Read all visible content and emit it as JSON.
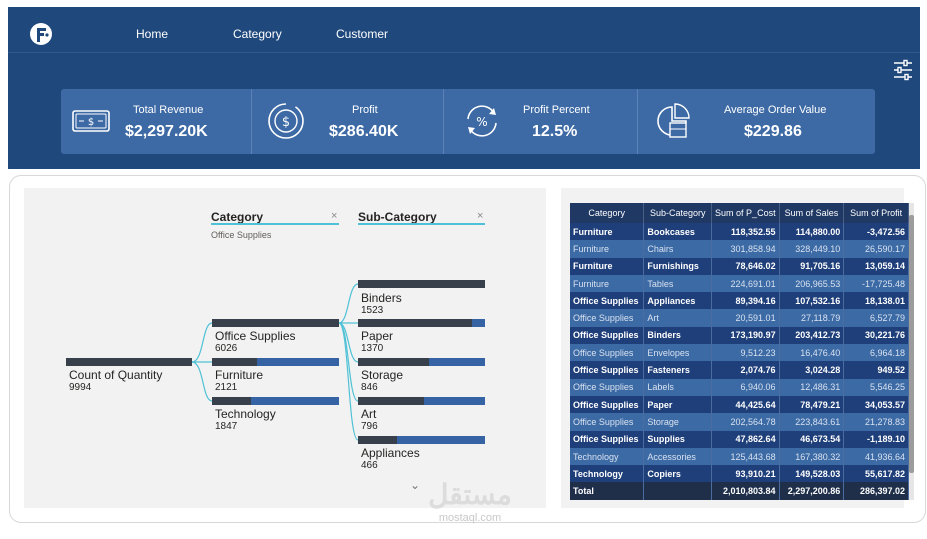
{
  "nav": {
    "items": [
      "Home",
      "Category",
      "Customer"
    ]
  },
  "kpis": [
    {
      "label": "Total Revenue",
      "value": "$2,297.20K",
      "icon": "cash-icon"
    },
    {
      "label": "Profit",
      "value": "$286.40K",
      "icon": "dollar-cycle-icon"
    },
    {
      "label": "Profit Percent",
      "value": "12.5%",
      "icon": "percent-cycle-icon"
    },
    {
      "label": "Average Order Value",
      "value": "$229.86",
      "icon": "chart-bag-icon"
    }
  ],
  "tree": {
    "category_header": "Category",
    "category_filter": "Office Supplies",
    "subcategory_header": "Sub-Category",
    "root": {
      "label": "Count of Quantity",
      "value": "9994"
    },
    "categories": [
      {
        "label": "Office Supplies",
        "value": "6026"
      },
      {
        "label": "Furniture",
        "value": "2121"
      },
      {
        "label": "Technology",
        "value": "1847"
      }
    ],
    "subcategories": [
      {
        "label": "Binders",
        "value": "1523"
      },
      {
        "label": "Paper",
        "value": "1370"
      },
      {
        "label": "Storage",
        "value": "846"
      },
      {
        "label": "Art",
        "value": "796"
      },
      {
        "label": "Appliances",
        "value": "466"
      }
    ]
  },
  "table": {
    "columns": [
      "Category",
      "Sub-Category",
      "Sum of P_Cost",
      "Sum of Sales",
      "Sum of Profit"
    ],
    "rows": [
      [
        "Furniture",
        "Bookcases",
        "118,352.55",
        "114,880.00",
        "-3,472.56"
      ],
      [
        "Furniture",
        "Chairs",
        "301,858.94",
        "328,449.10",
        "26,590.17"
      ],
      [
        "Furniture",
        "Furnishings",
        "78,646.02",
        "91,705.16",
        "13,059.14"
      ],
      [
        "Furniture",
        "Tables",
        "224,691.01",
        "206,965.53",
        "-17,725.48"
      ],
      [
        "Office Supplies",
        "Appliances",
        "89,394.16",
        "107,532.16",
        "18,138.01"
      ],
      [
        "Office Supplies",
        "Art",
        "20,591.01",
        "27,118.79",
        "6,527.79"
      ],
      [
        "Office Supplies",
        "Binders",
        "173,190.97",
        "203,412.73",
        "30,221.76"
      ],
      [
        "Office Supplies",
        "Envelopes",
        "9,512.23",
        "16,476.40",
        "6,964.18"
      ],
      [
        "Office Supplies",
        "Fasteners",
        "2,074.76",
        "3,024.28",
        "949.52"
      ],
      [
        "Office Supplies",
        "Labels",
        "6,940.06",
        "12,486.31",
        "5,546.25"
      ],
      [
        "Office Supplies",
        "Paper",
        "44,425.64",
        "78,479.21",
        "34,053.57"
      ],
      [
        "Office Supplies",
        "Storage",
        "202,564.78",
        "223,843.61",
        "21,278.83"
      ],
      [
        "Office Supplies",
        "Supplies",
        "47,862.64",
        "46,673.54",
        "-1,189.10"
      ],
      [
        "Technology",
        "Accessories",
        "125,443.68",
        "167,380.32",
        "41,936.64"
      ],
      [
        "Technology",
        "Copiers",
        "93,910.21",
        "149,528.03",
        "55,617.82"
      ]
    ],
    "total": [
      "Total",
      "",
      "2,010,803.84",
      "2,297,200.86",
      "286,397.02"
    ]
  },
  "watermark": {
    "main": "مستقل",
    "sub": "mostaql.com"
  },
  "colors": {
    "header_bg": "#1f497d",
    "kpi_bg": "#3d6aa5",
    "bar_dark": "#37404b",
    "bar_blue": "#3563a4",
    "tree_line": "#4fc1d6"
  }
}
